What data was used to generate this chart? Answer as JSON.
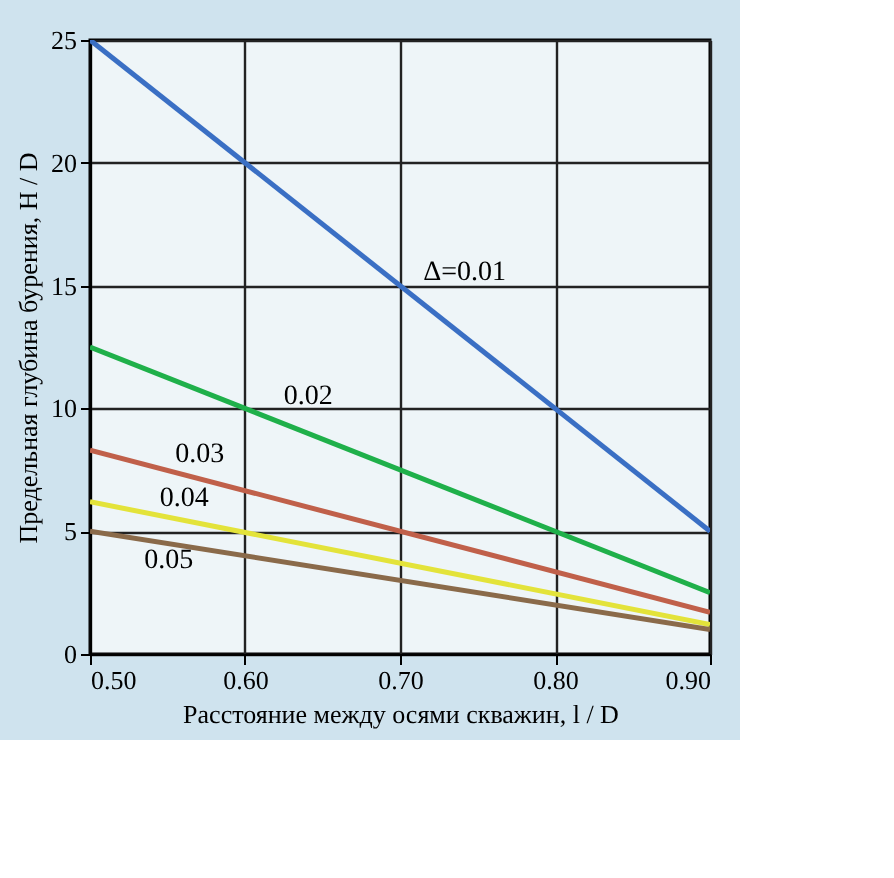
{
  "chart_data": {
    "type": "line",
    "xlabel": "Расстояние между осями скважин, l / D",
    "ylabel": "Предельная глубина бурения,  H / D",
    "xlim": [
      0.5,
      0.9
    ],
    "xticks": [
      {
        "value": 0.5,
        "label": "0.50"
      },
      {
        "value": 0.6,
        "label": "0.60"
      },
      {
        "value": 0.7,
        "label": "0.70"
      },
      {
        "value": 0.8,
        "label": "0.80"
      },
      {
        "value": 0.9,
        "label": "0.90"
      }
    ],
    "ylim": [
      0,
      25
    ],
    "yticks": [
      0,
      5,
      10,
      15,
      20,
      25
    ],
    "grid": true,
    "x": [
      0.5,
      0.9
    ],
    "series": [
      {
        "name": "Δ=0.01",
        "color": "#3a6fc4",
        "values": [
          25,
          5
        ]
      },
      {
        "name": "0.02",
        "color": "#1fb04a",
        "values": [
          12.5,
          2.5
        ]
      },
      {
        "name": "0.03",
        "color": "#c0604a",
        "values": [
          8.3,
          1.7
        ]
      },
      {
        "name": "0.04",
        "color": "#e3e33a",
        "values": [
          6.2,
          1.2
        ]
      },
      {
        "name": "0.05",
        "color": "#8a6a4a",
        "values": [
          5,
          1
        ]
      }
    ]
  }
}
